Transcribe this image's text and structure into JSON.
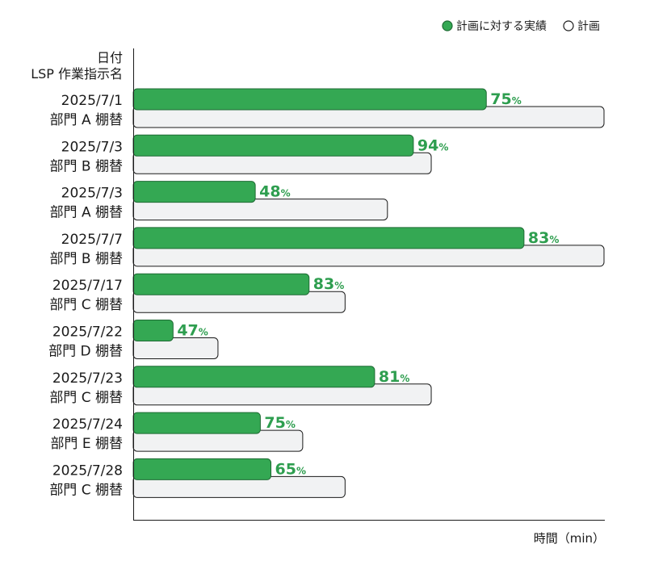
{
  "chart_data": {
    "type": "bar",
    "orientation": "horizontal",
    "legend": {
      "position": "top-right",
      "items": [
        {
          "label": "計画に対する実績",
          "marker": "filled-circle",
          "color": "#34a853"
        },
        {
          "label": "計画",
          "marker": "hollow-circle",
          "color": "#ffffff"
        }
      ]
    },
    "y_header": [
      "日付",
      "LSP 作業指示名"
    ],
    "xlabel": "時間（min）",
    "categories": [
      {
        "date": "2025/7/1",
        "name": "部門 A 棚替"
      },
      {
        "date": "2025/7/3",
        "name": "部門 B 棚替"
      },
      {
        "date": "2025/7/3",
        "name": "部門 A 棚替"
      },
      {
        "date": "2025/7/7",
        "name": "部門 B 棚替"
      },
      {
        "date": "2025/7/17",
        "name": "部門 C 棚替"
      },
      {
        "date": "2025/7/22",
        "name": "部門 D 棚替"
      },
      {
        "date": "2025/7/23",
        "name": "部門 C 棚替"
      },
      {
        "date": "2025/7/24",
        "name": "部門 E 棚替"
      },
      {
        "date": "2025/7/28",
        "name": "部門 C 棚替"
      }
    ],
    "plan": [
      100,
      63.3,
      54,
      100,
      45,
      18,
      63.3,
      36,
      45
    ],
    "actual_percent": [
      75,
      94,
      48,
      83,
      83,
      47,
      81,
      75,
      65
    ],
    "percent_suffix": "%",
    "xlim": [
      0,
      100
    ],
    "grid": false,
    "colors": {
      "actual": "#34a853",
      "actual_stroke": "#1f6b34",
      "plan": "#f1f2f3",
      "plan_stroke": "#1a1a1a",
      "percent_text": "#2e9e4f",
      "axis": "#1a1a1a"
    }
  }
}
